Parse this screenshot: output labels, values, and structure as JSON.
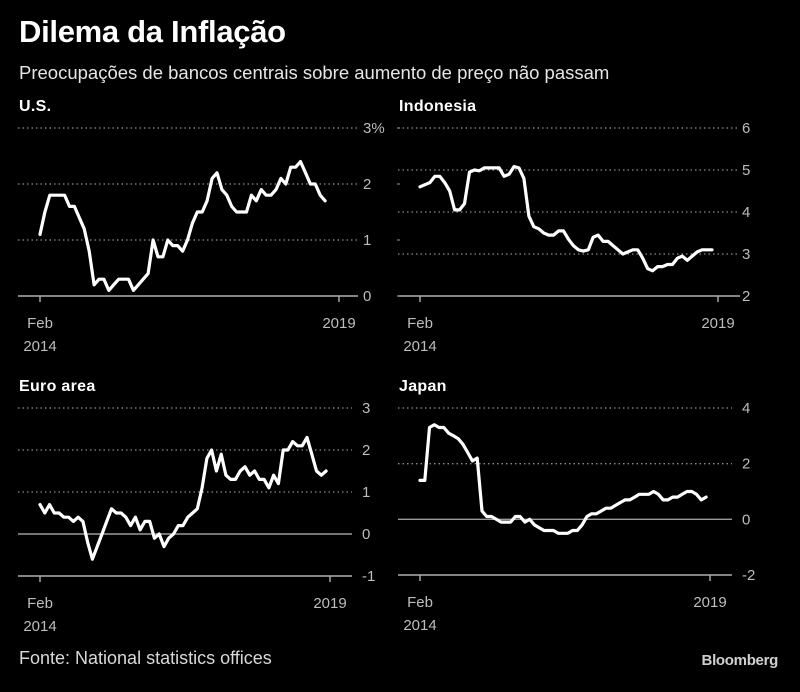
{
  "header": {
    "title": "Dilema da Inflação",
    "subtitle": "Preocupações de bancos centrais sobre aumento de preço não passam"
  },
  "footer": {
    "source": "Fonte: National statistics offices",
    "brand": "Bloomberg"
  },
  "colors": {
    "background": "#000000",
    "line": "#ffffff",
    "grid": "#8c8c8c",
    "axis_text": "#bdbdbd"
  },
  "chart_data": [
    {
      "type": "line",
      "title": "U.S.",
      "xlabel": "",
      "ylabel": "",
      "x_start": "2014-02",
      "x_end": "2018-12",
      "x_ticks": [
        {
          "label": "Feb",
          "sub": "2014",
          "month_index": 0
        },
        {
          "label": "2019",
          "sub": "",
          "month_index": 59
        }
      ],
      "ylim": [
        0,
        3
      ],
      "y_ticks": [
        "0",
        "1",
        "2",
        "3%"
      ],
      "y_tick_values": [
        0,
        1,
        2,
        3
      ],
      "zero_line": 0,
      "grid": "dotted",
      "values": [
        1.1,
        1.5,
        1.8,
        1.8,
        1.8,
        1.8,
        1.6,
        1.6,
        1.4,
        1.2,
        0.8,
        0.2,
        0.3,
        0.3,
        0.1,
        0.2,
        0.3,
        0.3,
        0.3,
        0.1,
        0.2,
        0.3,
        0.4,
        1.0,
        0.7,
        0.7,
        1.0,
        0.9,
        0.9,
        0.8,
        1.0,
        1.3,
        1.5,
        1.5,
        1.7,
        2.1,
        2.2,
        1.9,
        1.8,
        1.6,
        1.5,
        1.5,
        1.5,
        1.8,
        1.7,
        1.9,
        1.8,
        1.8,
        1.9,
        2.1,
        2.0,
        2.3,
        2.3,
        2.4,
        2.2,
        2.0,
        2.0,
        1.8,
        1.7
      ]
    },
    {
      "type": "line",
      "title": "Indonesia",
      "xlabel": "",
      "ylabel": "",
      "x_start": "2014-02",
      "x_end": "2018-12",
      "x_ticks": [
        {
          "label": "Feb",
          "sub": "2014",
          "month_index": 0
        },
        {
          "label": "2019",
          "sub": "",
          "month_index": 59
        }
      ],
      "ylim": [
        2,
        6
      ],
      "y_ticks": [
        "2",
        "3",
        "4",
        "5",
        "6"
      ],
      "y_tick_values": [
        2,
        3,
        4,
        5,
        6
      ],
      "zero_line": null,
      "grid": "dotted",
      "values": [
        4.6,
        4.65,
        4.7,
        4.85,
        4.85,
        4.7,
        4.5,
        4.05,
        4.05,
        4.2,
        4.95,
        5.0,
        4.98,
        5.05,
        5.05,
        5.05,
        5.05,
        4.85,
        4.9,
        5.08,
        5.05,
        4.8,
        3.9,
        3.65,
        3.6,
        3.5,
        3.45,
        3.45,
        3.55,
        3.55,
        3.35,
        3.2,
        3.1,
        3.07,
        3.1,
        3.4,
        3.45,
        3.3,
        3.3,
        3.2,
        3.1,
        3.0,
        3.05,
        3.1,
        3.1,
        2.9,
        2.65,
        2.6,
        2.7,
        2.7,
        2.75,
        2.75,
        2.9,
        2.95,
        2.85,
        2.95,
        3.05,
        3.1,
        3.1,
        3.1
      ]
    },
    {
      "type": "line",
      "title": "Euro area",
      "xlabel": "",
      "ylabel": "",
      "x_start": "2014-02",
      "x_end": "2018-12",
      "x_ticks": [
        {
          "label": "Feb",
          "sub": "2014",
          "month_index": 0
        },
        {
          "label": "2019",
          "sub": "",
          "month_index": 59
        }
      ],
      "ylim": [
        -1,
        3
      ],
      "y_ticks": [
        "-1",
        "0",
        "1",
        "2",
        "3"
      ],
      "y_tick_values": [
        -1,
        0,
        1,
        2,
        3
      ],
      "zero_line": 0,
      "grid": "dotted",
      "values": [
        0.7,
        0.5,
        0.7,
        0.5,
        0.5,
        0.4,
        0.4,
        0.3,
        0.4,
        0.3,
        -0.2,
        -0.6,
        -0.3,
        0.0,
        0.3,
        0.6,
        0.5,
        0.5,
        0.4,
        0.2,
        0.4,
        0.1,
        0.3,
        0.3,
        -0.1,
        0.0,
        -0.3,
        -0.1,
        0.0,
        0.2,
        0.2,
        0.4,
        0.5,
        0.6,
        1.1,
        1.8,
        2.0,
        1.5,
        1.9,
        1.4,
        1.3,
        1.3,
        1.5,
        1.6,
        1.4,
        1.5,
        1.3,
        1.3,
        1.1,
        1.4,
        1.2,
        2.0,
        2.0,
        2.2,
        2.1,
        2.1,
        2.3,
        1.9,
        1.5,
        1.4,
        1.5
      ]
    },
    {
      "type": "line",
      "title": "Japan",
      "xlabel": "",
      "ylabel": "",
      "x_start": "2014-02",
      "x_end": "2018-12",
      "x_ticks": [
        {
          "label": "Feb",
          "sub": "2014",
          "month_index": 0
        },
        {
          "label": "2019",
          "sub": "",
          "month_index": 59
        }
      ],
      "ylim": [
        -2,
        4
      ],
      "y_ticks": [
        "-2",
        "0",
        "2",
        "4"
      ],
      "y_tick_values": [
        -2,
        0,
        2,
        4
      ],
      "zero_line": 0,
      "grid": "dotted",
      "values": [
        1.4,
        1.4,
        3.3,
        3.4,
        3.3,
        3.3,
        3.1,
        3.0,
        2.9,
        2.7,
        2.4,
        2.1,
        2.2,
        0.3,
        0.1,
        0.1,
        0.0,
        -0.1,
        -0.1,
        -0.1,
        0.1,
        0.1,
        -0.1,
        0.0,
        -0.2,
        -0.3,
        -0.4,
        -0.4,
        -0.4,
        -0.5,
        -0.5,
        -0.5,
        -0.4,
        -0.4,
        -0.2,
        0.1,
        0.2,
        0.2,
        0.3,
        0.4,
        0.4,
        0.5,
        0.6,
        0.7,
        0.7,
        0.8,
        0.9,
        0.9,
        0.9,
        1.0,
        0.9,
        0.7,
        0.7,
        0.8,
        0.8,
        0.9,
        1.0,
        1.0,
        0.9,
        0.7,
        0.8
      ]
    }
  ]
}
